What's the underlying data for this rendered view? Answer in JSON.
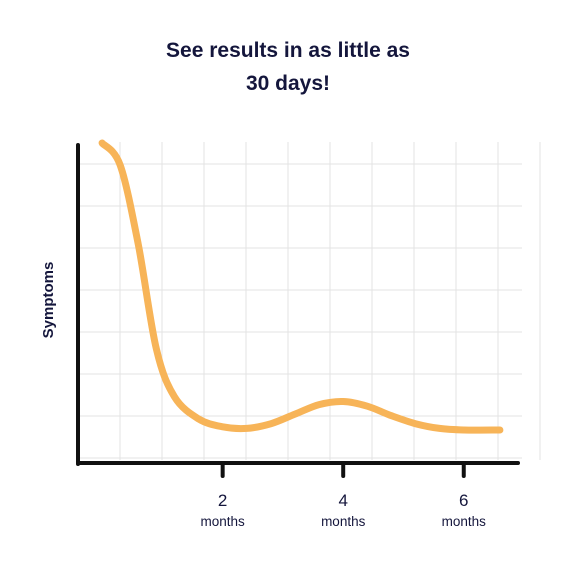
{
  "chart_data": {
    "type": "line",
    "title": [
      "See results in as little as",
      "30 days!"
    ],
    "ylabel": "Symptoms",
    "xlabel": "",
    "x_ticks": [
      {
        "value": 2,
        "label": "2",
        "unit": "months"
      },
      {
        "value": 4,
        "label": "4",
        "unit": "months"
      },
      {
        "value": 6,
        "label": "6",
        "unit": "months"
      }
    ],
    "xlim": [
      -0.4,
      6.9
    ],
    "ylim": [
      0,
      10
    ],
    "grid": true,
    "series": [
      {
        "color": "#f7b458",
        "x": [
          0.0,
          0.3,
          0.6,
          0.9,
          1.2,
          1.6,
          2.0,
          2.4,
          2.8,
          3.2,
          3.6,
          4.0,
          4.4,
          4.8,
          5.2,
          5.6,
          6.0,
          6.6
        ],
        "y": [
          10.0,
          9.3,
          6.8,
          3.5,
          2.0,
          1.3,
          1.05,
          1.0,
          1.15,
          1.45,
          1.75,
          1.85,
          1.7,
          1.4,
          1.15,
          1.0,
          0.95,
          0.95
        ]
      }
    ]
  }
}
